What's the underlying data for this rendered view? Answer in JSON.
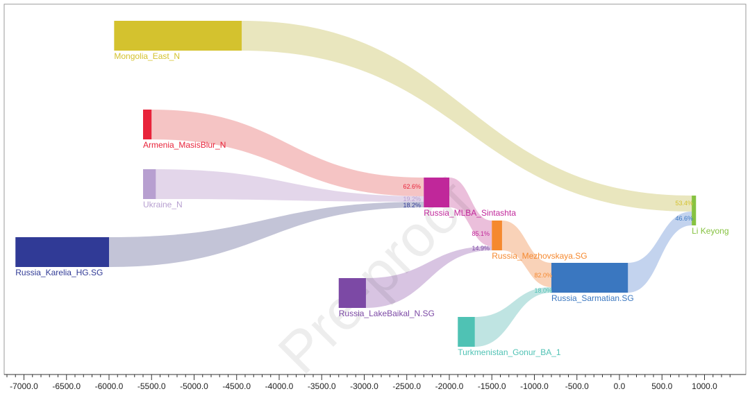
{
  "diagram": {
    "type": "sankey",
    "watermark": "Pre-proof",
    "axis": {
      "ticks": [
        -7000,
        -6500,
        -6000,
        -5500,
        -5000,
        -4500,
        -4000,
        -3500,
        -3000,
        -2500,
        -2000,
        -1500,
        -1000,
        -500,
        0,
        500,
        1000
      ],
      "tick_labels": [
        "-7000.0",
        "-6500.0",
        "-6000.0",
        "-5500.0",
        "-5000.0",
        "-4500.0",
        "-4000.0",
        "-3500.0",
        "-3000.0",
        "-2500.0",
        "-2000.0",
        "-1500.0",
        "-1000.0",
        "-500.0",
        "0.0",
        "500.0",
        "1000.0"
      ],
      "minor_step": 100
    },
    "nodes": [
      {
        "id": "mongolia",
        "label": "Mongolia_East_N",
        "color": "#d4c22e",
        "start": -5940,
        "end": -4440
      },
      {
        "id": "armenia",
        "label": "Armenia_MasisBlur_N",
        "color": "#e8233a",
        "start": -5600,
        "end": -5500
      },
      {
        "id": "ukraine",
        "label": "Ukraine_N",
        "color": "#b79fd0",
        "start": -5600,
        "end": -5450
      },
      {
        "id": "karelia",
        "label": "Russia_Karelia_HG.SG",
        "color": "#303a96",
        "start": -7100,
        "end": -6000
      },
      {
        "id": "sintashta",
        "label": "Russia_MLBA_Sintashta",
        "color": "#c0279a",
        "start": -2300,
        "end": -2000
      },
      {
        "id": "baikal",
        "label": "Russia_LakeBaikal_N.SG",
        "color": "#7c49a5",
        "start": -3300,
        "end": -2980
      },
      {
        "id": "mezhov",
        "label": "Russia_Mezhovskaya.SG",
        "color": "#f5892f",
        "start": -1500,
        "end": -1380
      },
      {
        "id": "gonur",
        "label": "Turkmenistan_Gonur_BA_1",
        "color": "#4fc2b4",
        "start": -1900,
        "end": -1700
      },
      {
        "id": "sarmatian",
        "label": "Russia_Sarmatian.SG",
        "color": "#3a77c0",
        "start": -800,
        "end": 100
      },
      {
        "id": "keyong",
        "label": "Li Keyong",
        "color": "#86c241",
        "start": 850,
        "end": 900
      }
    ],
    "links": [
      {
        "source": "mongolia",
        "target": "keyong",
        "value": "53.4%",
        "color": "#e9e6be"
      },
      {
        "source": "sarmatian",
        "target": "keyong",
        "value": "46.6%",
        "color": "#c3d3ee"
      },
      {
        "source": "armenia",
        "target": "sintashta",
        "value": "62.6%",
        "color": "#f5c4c4"
      },
      {
        "source": "ukraine",
        "target": "sintashta",
        "value": "19.2%",
        "color": "#e3d6ea"
      },
      {
        "source": "karelia",
        "target": "sintashta",
        "value": "18.2%",
        "color": "#c3c4d7"
      },
      {
        "source": "sintashta",
        "target": "mezhov",
        "value": "85.1%",
        "color": "#ebbfdb"
      },
      {
        "source": "baikal",
        "target": "mezhov",
        "value": "14.9%",
        "color": "#d8c4e2"
      },
      {
        "source": "mezhov",
        "target": "sarmatian",
        "value": "82.0%",
        "color": "#f9d2b8"
      },
      {
        "source": "gonur",
        "target": "sarmatian",
        "value": "18.0%",
        "color": "#bfe4e2"
      }
    ]
  }
}
